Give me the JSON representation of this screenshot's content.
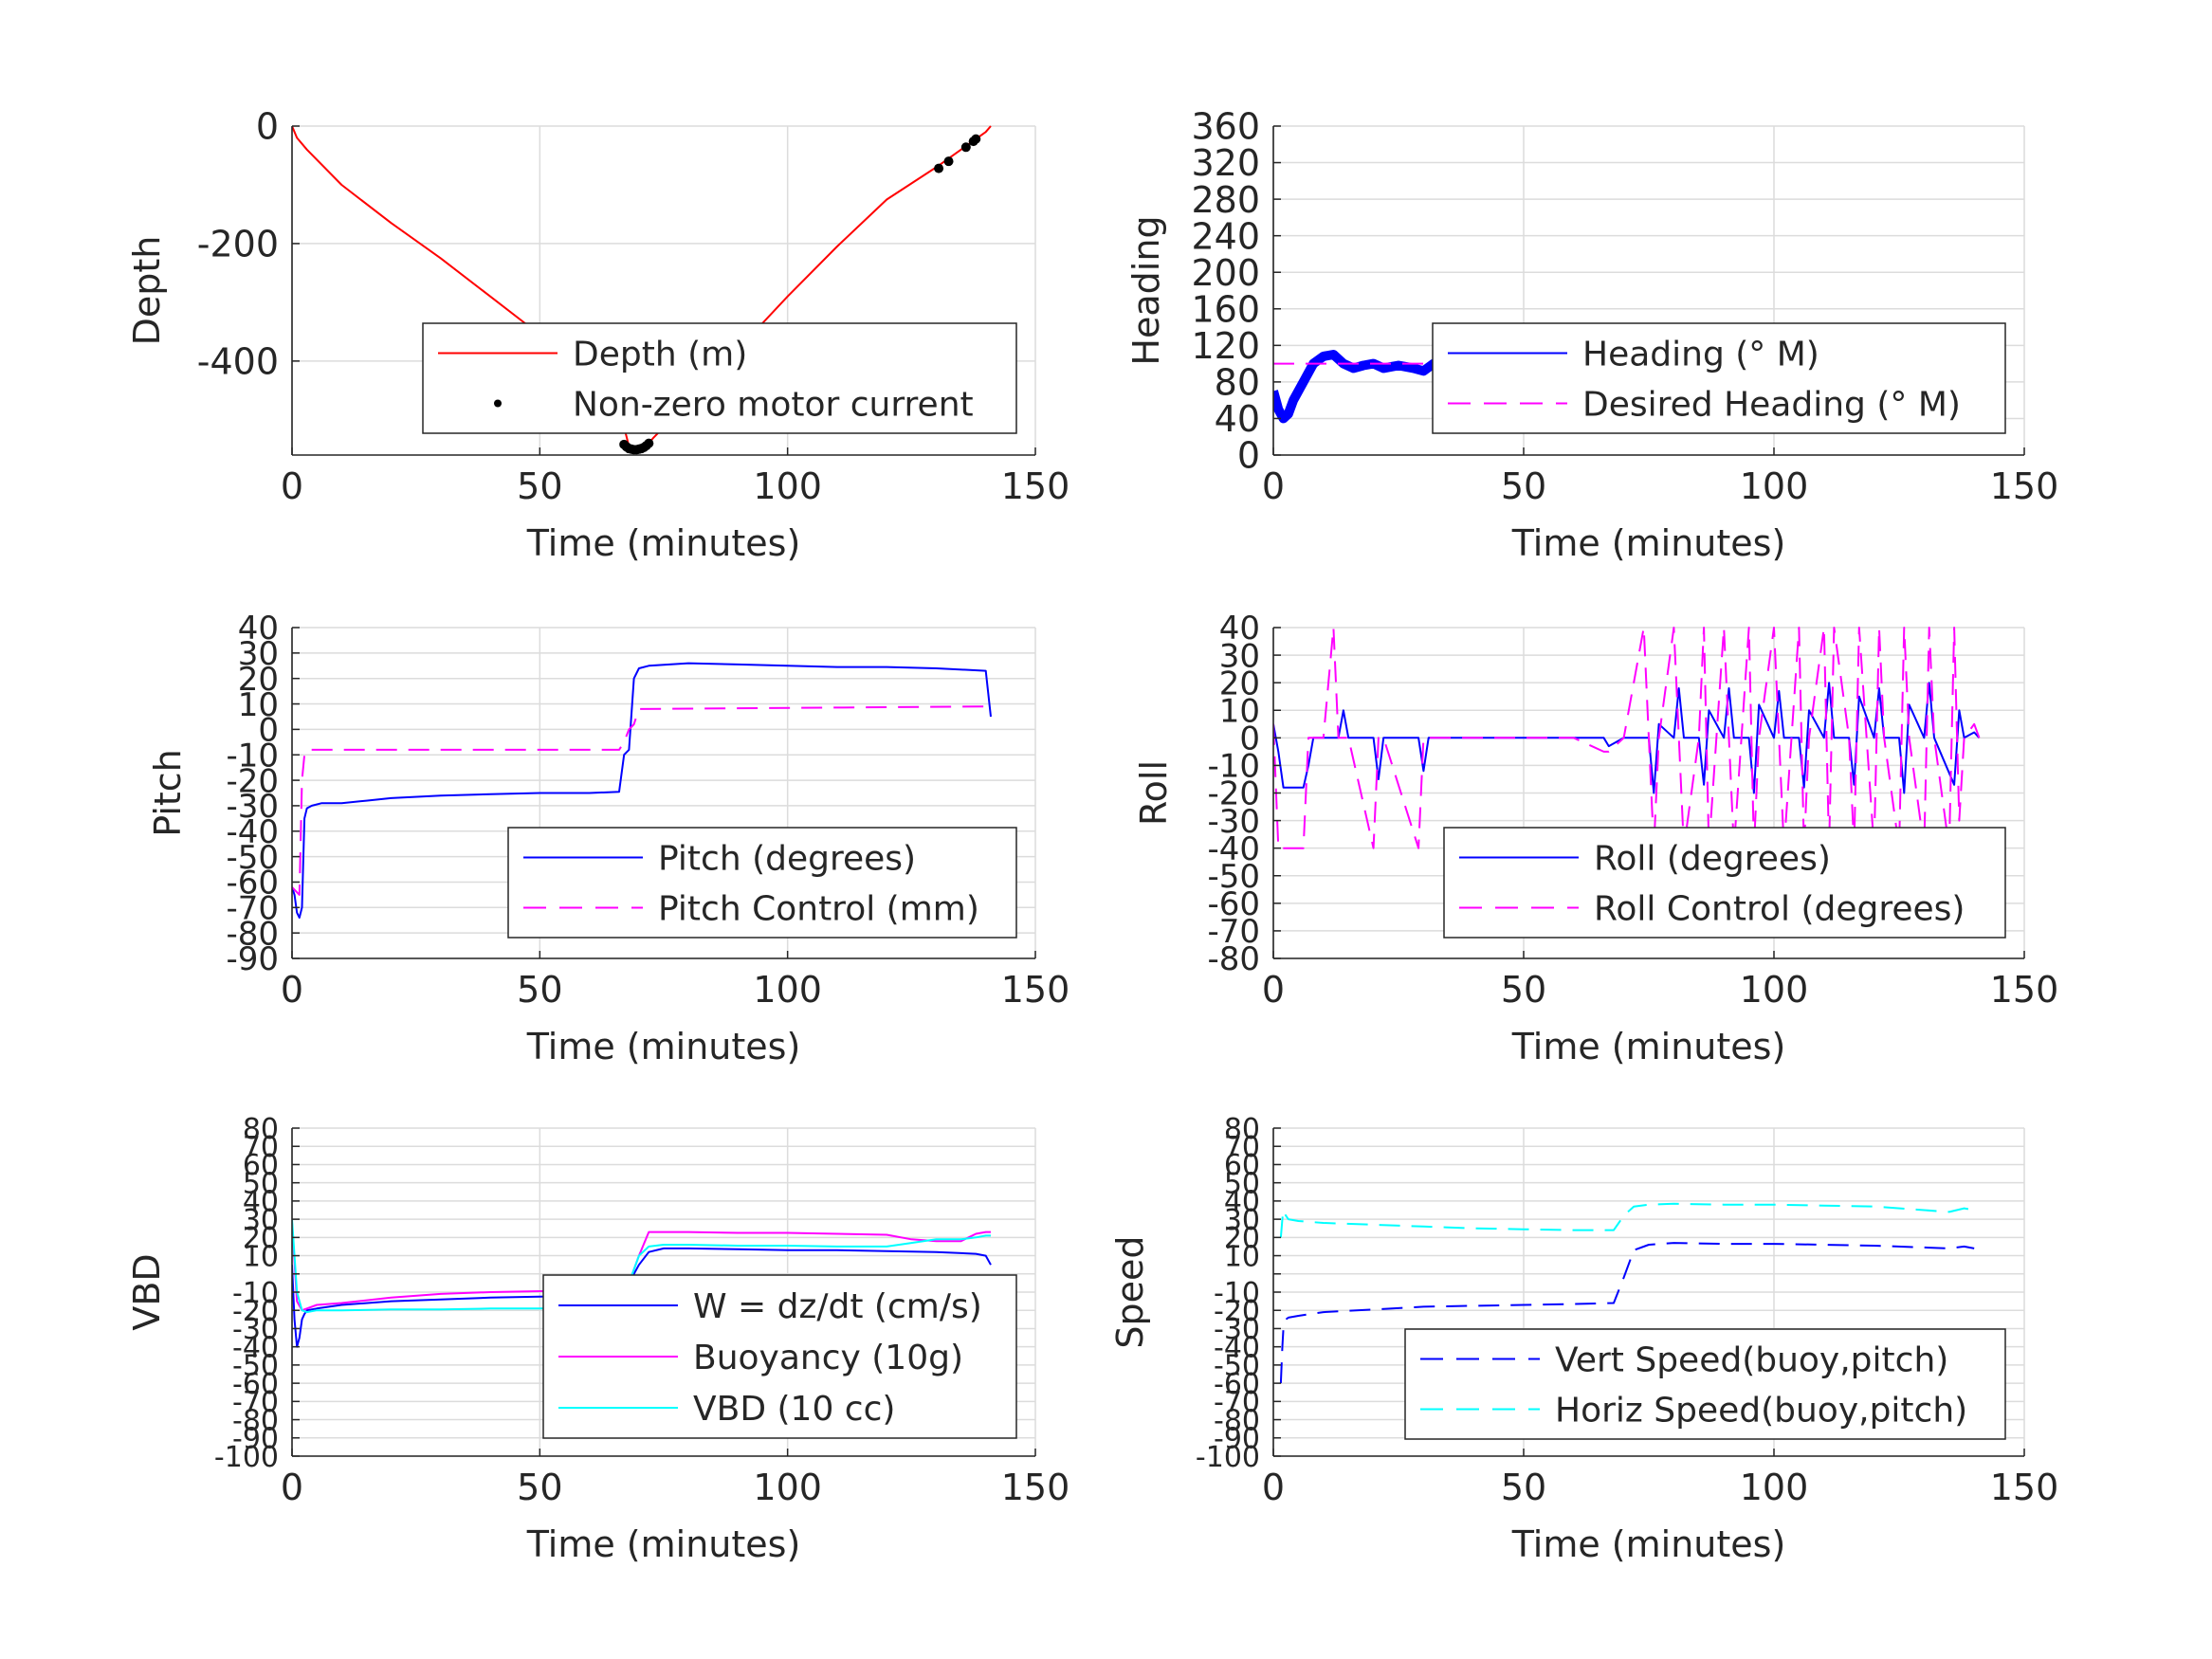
{
  "chart_data": [
    {
      "id": "depth",
      "type": "line",
      "xlabel": "Time (minutes)",
      "ylabel": "Depth",
      "xlim": [
        0,
        150
      ],
      "ylim": [
        -560,
        0
      ],
      "xticks": [
        0,
        50,
        100,
        150
      ],
      "yticks": [
        0,
        -200,
        -400
      ],
      "grid": true,
      "legend_position": "bottom-right",
      "series": [
        {
          "name": "Depth (m)",
          "color": "#ff0000",
          "style": "solid",
          "x": [
            0,
            1,
            3,
            10,
            20,
            30,
            40,
            50,
            60,
            66,
            68,
            70,
            71,
            72,
            73,
            80,
            90,
            100,
            110,
            120,
            130,
            135,
            140,
            141
          ],
          "y": [
            0,
            -20,
            -40,
            -100,
            -165,
            -225,
            -290,
            -355,
            -420,
            -480,
            -545,
            -550,
            -548,
            -540,
            -530,
            -470,
            -380,
            -290,
            -205,
            -125,
            -70,
            -40,
            -10,
            0
          ]
        },
        {
          "name": "Non-zero motor current",
          "color": "#000000",
          "style": "dots",
          "x": [
            67,
            67.5,
            68,
            68.5,
            69,
            69.5,
            70,
            70.5,
            71,
            71.5,
            72,
            130.5,
            132.5,
            136,
            137.5,
            138
          ],
          "y": [
            -542,
            -546,
            -549,
            -550,
            -551,
            -551,
            -550,
            -549,
            -547,
            -544,
            -540,
            -72,
            -60,
            -36,
            -26,
            -22
          ]
        }
      ]
    },
    {
      "id": "heading",
      "type": "line",
      "xlabel": "Time (minutes)",
      "ylabel": "Heading",
      "xlim": [
        0,
        150
      ],
      "ylim": [
        0,
        360
      ],
      "xticks": [
        0,
        50,
        100,
        150
      ],
      "yticks": [
        0,
        40,
        80,
        120,
        160,
        200,
        240,
        280,
        320,
        360
      ],
      "grid": true,
      "legend_position": "bottom-right",
      "series": [
        {
          "name": "Heading (° M)",
          "color": "#0000ff",
          "style": "thick",
          "x": [
            0,
            1,
            2,
            3,
            4,
            6,
            8,
            10,
            12,
            14,
            16,
            18,
            20,
            22,
            25,
            28,
            30,
            32,
            35,
            40,
            45,
            50,
            55,
            60,
            65,
            68,
            70,
            72,
            75,
            78,
            80,
            83,
            86,
            88,
            90,
            93,
            95,
            98,
            100,
            103,
            105,
            108,
            110,
            113,
            115,
            118,
            120,
            123,
            125,
            128,
            130,
            133,
            135,
            137,
            139,
            141
          ],
          "y": [
            70,
            50,
            40,
            45,
            60,
            80,
            100,
            108,
            110,
            100,
            95,
            98,
            100,
            95,
            98,
            95,
            92,
            100,
            105,
            108,
            106,
            108,
            105,
            107,
            103,
            100,
            105,
            95,
            108,
            85,
            110,
            90,
            112,
            85,
            105,
            92,
            108,
            80,
            112,
            90,
            102,
            85,
            115,
            88,
            108,
            82,
            112,
            90,
            110,
            84,
            113,
            86,
            120,
            90,
            100,
            118
          ]
        },
        {
          "name": "Desired Heading (° M)",
          "color": "#ff00ff",
          "style": "dashed",
          "x": [
            0,
            141
          ],
          "y": [
            100,
            100
          ]
        }
      ]
    },
    {
      "id": "pitch",
      "type": "line",
      "xlabel": "Time (minutes)",
      "ylabel": "Pitch",
      "xlim": [
        0,
        150
      ],
      "ylim": [
        -90,
        40
      ],
      "xticks": [
        0,
        50,
        100,
        150
      ],
      "yticks": [
        -90,
        -80,
        -70,
        -60,
        -50,
        -40,
        -30,
        -20,
        -10,
        0,
        10,
        20,
        30,
        40
      ],
      "grid": true,
      "legend_position": "bottom-right",
      "series": [
        {
          "name": "Pitch (degrees)",
          "color": "#0000ff",
          "style": "solid",
          "x": [
            0,
            0.5,
            1,
            1.5,
            2,
            2.5,
            3,
            4,
            6,
            10,
            15,
            20,
            30,
            40,
            50,
            60,
            66,
            67,
            68,
            69,
            70,
            72,
            80,
            90,
            100,
            110,
            120,
            130,
            140,
            141
          ],
          "y": [
            -62,
            -65,
            -72,
            -74,
            -70,
            -35,
            -31,
            -30,
            -29,
            -29,
            -28,
            -27,
            -26,
            -25.5,
            -25,
            -25,
            -24.5,
            -10,
            -8,
            20,
            24,
            25,
            26,
            25.5,
            25,
            24.5,
            24.5,
            24,
            23,
            5
          ]
        },
        {
          "name": "Pitch Control (mm)",
          "color": "#ff00ff",
          "style": "dashed",
          "x": [
            0,
            1.5,
            2,
            2.5,
            3,
            66,
            67,
            68,
            69,
            70,
            141
          ],
          "y": [
            -62,
            -65,
            -20,
            -10,
            -8,
            -8,
            -5,
            0,
            2,
            8,
            9
          ]
        }
      ]
    },
    {
      "id": "roll",
      "type": "line",
      "xlabel": "Time (minutes)",
      "ylabel": "Roll",
      "xlim": [
        0,
        150
      ],
      "ylim": [
        -80,
        40
      ],
      "xticks": [
        0,
        50,
        100,
        150
      ],
      "yticks": [
        -80,
        -70,
        -60,
        -50,
        -40,
        -30,
        -20,
        -10,
        0,
        10,
        20,
        30,
        40
      ],
      "grid": true,
      "legend_position": "bottom-right",
      "series": [
        {
          "name": "Roll (degrees)",
          "color": "#0000ff",
          "style": "solid",
          "x": [
            0,
            1,
            2,
            3,
            6,
            7,
            8,
            10,
            13,
            14,
            15,
            20,
            21,
            22,
            29,
            30,
            31,
            40,
            50,
            60,
            66,
            67,
            70,
            75,
            76,
            77,
            80,
            81,
            82,
            85,
            86,
            87,
            90,
            91,
            92,
            95,
            96,
            97,
            100,
            101,
            102,
            105,
            106,
            107,
            110,
            111,
            112,
            115,
            116,
            117,
            120,
            121,
            122,
            125,
            126,
            127,
            130,
            131,
            132,
            136,
            137,
            138,
            140,
            141
          ],
          "y": [
            5,
            -5,
            -18,
            -18,
            -18,
            -10,
            0,
            0,
            0,
            10,
            0,
            0,
            -15,
            0,
            0,
            -12,
            0,
            0,
            0,
            0,
            0,
            -3,
            0,
            0,
            -20,
            5,
            0,
            18,
            0,
            0,
            -17,
            10,
            0,
            18,
            0,
            0,
            -20,
            12,
            0,
            17,
            0,
            0,
            -18,
            10,
            0,
            20,
            0,
            0,
            -17,
            15,
            0,
            18,
            0,
            0,
            -20,
            12,
            0,
            20,
            0,
            -17,
            10,
            0,
            2,
            0
          ]
        },
        {
          "name": "Roll Control (degrees)",
          "color": "#ff00ff",
          "style": "dashed",
          "x": [
            0,
            1,
            2,
            3,
            6,
            7,
            8,
            10,
            12,
            13,
            14,
            15,
            20,
            21,
            22,
            29,
            30,
            31,
            40,
            60,
            66,
            67,
            70,
            74,
            75,
            76,
            77,
            80,
            81,
            82,
            85,
            86,
            87,
            90,
            91,
            92,
            95,
            96,
            97,
            100,
            101,
            102,
            105,
            106,
            107,
            110,
            111,
            112,
            115,
            116,
            117,
            120,
            121,
            122,
            125,
            126,
            127,
            130,
            131,
            132,
            135,
            136,
            137,
            138,
            140,
            141
          ],
          "y": [
            5,
            -40,
            -40,
            -40,
            -40,
            0,
            0,
            0,
            40,
            0,
            0,
            0,
            -40,
            0,
            0,
            -40,
            0,
            0,
            0,
            0,
            -5,
            -5,
            0,
            40,
            0,
            -40,
            0,
            40,
            0,
            -40,
            0,
            40,
            -40,
            40,
            0,
            -40,
            40,
            -40,
            0,
            40,
            0,
            -40,
            40,
            -40,
            0,
            40,
            -40,
            40,
            0,
            -40,
            40,
            -40,
            40,
            0,
            -40,
            40,
            0,
            -40,
            40,
            0,
            -40,
            40,
            -30,
            0,
            5,
            0
          ]
        }
      ]
    },
    {
      "id": "vbd",
      "type": "line",
      "xlabel": "Time (minutes)",
      "ylabel": "VBD",
      "xlim": [
        0,
        150
      ],
      "ylim": [
        -100,
        80
      ],
      "xticks": [
        0,
        50,
        100,
        150
      ],
      "yticks": [
        -100,
        -90,
        -80,
        -70,
        -60,
        -50,
        -40,
        -30,
        -20,
        -10,
        0,
        10,
        20,
        30,
        40,
        50,
        60,
        70,
        80
      ],
      "ytick_labels_shown": [
        "-100",
        "-90",
        "-80",
        "-70",
        "-60",
        "-50",
        "-40",
        "-30",
        "-20",
        "-10",
        "10",
        "20",
        "30",
        "40",
        "50",
        "60",
        "70",
        "80"
      ],
      "grid": true,
      "legend_position": "bottom-right",
      "series": [
        {
          "name": "W = dz/dt (cm/s)",
          "color": "#0000ff",
          "style": "solid",
          "x": [
            0,
            0.5,
            1,
            1.5,
            2,
            2.5,
            3,
            5,
            10,
            20,
            30,
            40,
            50,
            60,
            66,
            68,
            70,
            72,
            75,
            80,
            90,
            100,
            110,
            120,
            130,
            138,
            140,
            141
          ],
          "y": [
            5,
            -25,
            -40,
            -35,
            -25,
            -22,
            -20,
            -19,
            -17,
            -15,
            -14,
            -13,
            -12.5,
            -12,
            -11,
            -5,
            5,
            12,
            14,
            14,
            13.5,
            13,
            13,
            12.5,
            12,
            11,
            10,
            5
          ]
        },
        {
          "name": "Buoyancy (10g)",
          "color": "#ff00ff",
          "style": "solid",
          "x": [
            0,
            1,
            2,
            3,
            5,
            10,
            20,
            30,
            40,
            50,
            60,
            66,
            68,
            70,
            72,
            80,
            90,
            100,
            110,
            120,
            125,
            130,
            135,
            138,
            140,
            141
          ],
          "y": [
            28,
            -15,
            -20,
            -19,
            -17,
            -16,
            -13,
            -11,
            -10,
            -9.5,
            -9,
            -9,
            -5,
            10,
            23,
            23,
            22.5,
            22.5,
            22,
            21.5,
            19,
            18,
            18,
            22,
            23,
            23
          ]
        },
        {
          "name": "VBD (10 cc)",
          "color": "#00ffff",
          "style": "solid",
          "x": [
            0,
            1,
            2,
            3,
            5,
            10,
            20,
            30,
            40,
            50,
            60,
            66,
            67,
            68,
            70,
            72,
            75,
            80,
            90,
            100,
            110,
            120,
            125,
            130,
            135,
            138,
            140,
            141
          ],
          "y": [
            30,
            -10,
            -20,
            -21,
            -20,
            -20,
            -19.5,
            -19.5,
            -19,
            -19,
            -18.5,
            -18,
            -14,
            -5,
            10,
            15,
            16,
            16,
            15.5,
            15.5,
            15,
            15,
            17,
            19,
            19,
            20,
            21,
            21
          ]
        }
      ]
    },
    {
      "id": "speed",
      "type": "line",
      "xlabel": "Time (minutes)",
      "ylabel": "Speed",
      "xlim": [
        0,
        150
      ],
      "ylim": [
        -100,
        80
      ],
      "xticks": [
        0,
        50,
        100,
        150
      ],
      "yticks": [
        -100,
        -90,
        -80,
        -70,
        -60,
        -50,
        -40,
        -30,
        -20,
        -10,
        0,
        10,
        20,
        30,
        40,
        50,
        60,
        70,
        80
      ],
      "ytick_labels_shown": [
        "-100",
        "-90",
        "-80",
        "-70",
        "-60",
        "-50",
        "-40",
        "-30",
        "-20",
        "-10",
        "10",
        "20",
        "30",
        "40",
        "50",
        "60",
        "70",
        "80"
      ],
      "grid": true,
      "legend_position": "bottom-right",
      "series": [
        {
          "name": "Vert Speed(buoy,pitch)",
          "color": "#0000ff",
          "style": "dashed",
          "x": [
            1.5,
            1.8,
            2,
            2.5,
            3,
            5,
            10,
            20,
            30,
            40,
            50,
            60,
            68,
            70,
            72,
            75,
            80,
            90,
            100,
            110,
            120,
            130,
            135,
            138,
            140
          ],
          "y": [
            -60,
            -40,
            -30,
            -25,
            -24,
            -23,
            -21,
            -19.5,
            -18,
            -17.5,
            -17,
            -16.5,
            -16,
            -2,
            13,
            16,
            17,
            16.5,
            16.5,
            16,
            15.5,
            14.5,
            14,
            15,
            14
          ]
        },
        {
          "name": "Horiz Speed(buoy,pitch)",
          "color": "#00ffff",
          "style": "dashed",
          "x": [
            1.5,
            1.8,
            2,
            2.5,
            3,
            5,
            10,
            20,
            30,
            40,
            50,
            60,
            68,
            69,
            70,
            72,
            75,
            80,
            90,
            100,
            110,
            120,
            130,
            135,
            138,
            140
          ],
          "y": [
            20,
            30,
            35,
            32,
            30,
            29,
            28,
            27,
            26,
            25,
            24.5,
            24,
            24,
            28,
            32,
            37,
            38,
            38.5,
            38,
            38,
            37.5,
            37,
            35,
            34,
            36,
            35
          ]
        }
      ]
    }
  ]
}
